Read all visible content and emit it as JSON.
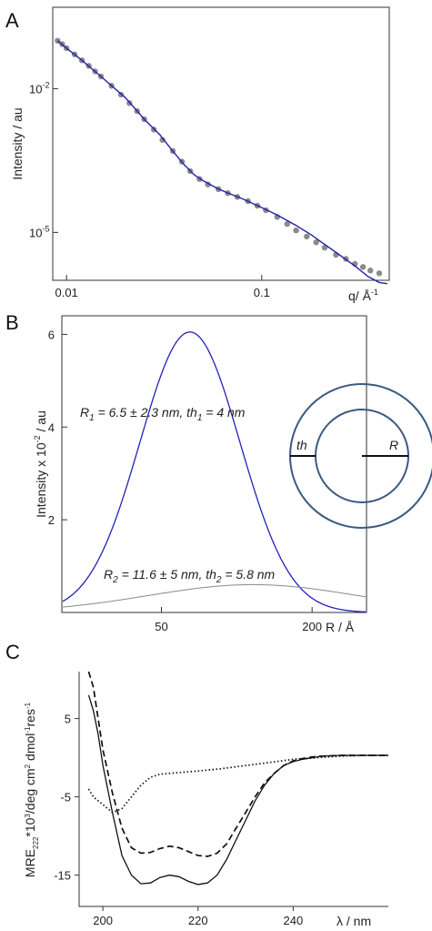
{
  "chart_data": [
    {
      "panel": "A",
      "type": "scatter",
      "xscale": "log",
      "yscale": "log",
      "xlim": [
        0.0085,
        0.45
      ],
      "ylim": [
        1e-06,
        0.5
      ],
      "xlabel": "q/ Å",
      "xlabel_sup": "-1",
      "ylabel": "Intensity / au",
      "x_ticks": [
        {
          "value": 0.01,
          "label": "0.01"
        },
        {
          "value": 0.1,
          "label": "0.1"
        }
      ],
      "y_ticks": [
        {
          "value": 0.01,
          "base": "10",
          "exp": "-2"
        },
        {
          "value": 1e-05,
          "base": "10",
          "exp": "-5"
        }
      ],
      "series": [
        {
          "role": "data",
          "color": "#8a8a8a",
          "x": [
            0.009,
            0.0095,
            0.01,
            0.011,
            0.012,
            0.013,
            0.014,
            0.015,
            0.017,
            0.019,
            0.021,
            0.023,
            0.025,
            0.028,
            0.031,
            0.035,
            0.039,
            0.043,
            0.048,
            0.053,
            0.06,
            0.067,
            0.075,
            0.085,
            0.095,
            0.105,
            0.12,
            0.135,
            0.15,
            0.17,
            0.19,
            0.21,
            0.24,
            0.27,
            0.3,
            0.33,
            0.36,
            0.4
          ],
          "y": [
            0.1,
            0.085,
            0.07,
            0.052,
            0.039,
            0.03,
            0.023,
            0.018,
            0.0115,
            0.0075,
            0.005,
            0.0034,
            0.0023,
            0.0014,
            0.00085,
            0.0005,
            0.0003,
            0.00019,
            0.00013,
            0.0001,
            8e-05,
            6.6e-05,
            5.5e-05,
            4.5e-05,
            3.6e-05,
            2.9e-05,
            2.1e-05,
            1.5e-05,
            1.1e-05,
            8.2e-06,
            6.2e-06,
            4.8e-06,
            3.4e-06,
            2.8e-06,
            2.2e-06,
            1.9e-06,
            1.6e-06,
            1.4e-06
          ]
        },
        {
          "role": "fit",
          "color": "#2222aa",
          "x": [
            0.009,
            0.01,
            0.012,
            0.015,
            0.02,
            0.025,
            0.03,
            0.035,
            0.04,
            0.045,
            0.05,
            0.06,
            0.07,
            0.08,
            0.1,
            0.12,
            0.15,
            0.18,
            0.21,
            0.25,
            0.3,
            0.35,
            0.4,
            0.44
          ],
          "y": [
            0.1,
            0.07,
            0.039,
            0.018,
            0.0065,
            0.0023,
            0.0011,
            0.0005,
            0.00026,
            0.00016,
            0.00012,
            8e-05,
            6.2e-05,
            5e-05,
            3.3e-05,
            2.3e-05,
            1.4e-05,
            8.8e-06,
            5.6e-06,
            3.4e-06,
            2e-06,
            1.2e-06,
            9e-07,
            8.5e-07
          ]
        }
      ]
    },
    {
      "panel": "B",
      "type": "line",
      "xscale": "log",
      "xlim": [
        20,
        330
      ],
      "ylim": [
        0,
        6.4
      ],
      "xlabel": "R / Å",
      "ylabel_parts": [
        "Intensity x 10",
        "-2",
        " / au"
      ],
      "x_ticks": [
        {
          "value": 50,
          "label": "50"
        },
        {
          "value": 200,
          "label": "200"
        }
      ],
      "y_ticks": [
        {
          "value": 2,
          "label": "2"
        },
        {
          "value": 4,
          "label": "4"
        },
        {
          "value": 6,
          "label": "6"
        }
      ],
      "series": [
        {
          "color": "#2222bb",
          "center": 65,
          "peak": 6.05,
          "log_sigma": 0.2
        },
        {
          "color": "#888888",
          "center": 116,
          "peak": 0.6,
          "log_sigma": 0.42
        }
      ],
      "annotations": [
        {
          "parts": [
            [
              "R",
              false
            ],
            [
              "1",
              true
            ],
            [
              " = 6.5 ± 2.3 nm, th",
              false
            ],
            [
              "1",
              true
            ],
            [
              " = 4 nm",
              false
            ]
          ]
        },
        {
          "parts": [
            [
              "R",
              false
            ],
            [
              "2",
              true
            ],
            [
              " = 11.6 ± 5 nm, th",
              false
            ],
            [
              "2",
              true
            ],
            [
              " = 5.8 nm",
              false
            ]
          ]
        }
      ],
      "inset": {
        "outer_label": "th",
        "radius_label": "R",
        "color": "#3b5a80"
      }
    },
    {
      "panel": "C",
      "type": "line",
      "xlim": [
        195,
        260
      ],
      "ylim": [
        -19,
        11
      ],
      "xlabel": "λ / nm",
      "ylabel_parts": [
        [
          "MRE",
          "n"
        ],
        [
          "222",
          "sub"
        ],
        [
          "*10",
          "n"
        ],
        [
          "3",
          "sup"
        ],
        [
          "/deg cm",
          "n"
        ],
        [
          "2",
          "sup"
        ],
        [
          " dmol",
          "n"
        ],
        [
          "-1",
          "sup"
        ],
        [
          "res",
          "n"
        ],
        [
          "-1",
          "sup"
        ]
      ],
      "x_ticks": [
        {
          "value": 200,
          "label": "200"
        },
        {
          "value": 220,
          "label": "220"
        },
        {
          "value": 240,
          "label": "240"
        }
      ],
      "y_ticks": [
        {
          "value": 5,
          "label": "5"
        },
        {
          "value": -5,
          "label": "-5"
        },
        {
          "value": -15,
          "label": "-15"
        }
      ],
      "series": [
        {
          "style": "solid",
          "x": [
            197,
            198,
            199,
            200,
            202,
            204,
            206,
            208,
            210,
            212,
            214,
            216,
            218,
            220,
            222,
            224,
            226,
            228,
            230,
            232,
            234,
            236,
            238,
            240,
            242,
            244,
            246,
            250,
            255,
            260
          ],
          "y": [
            8,
            6,
            3,
            -1,
            -7,
            -12.5,
            -15,
            -16.1,
            -16,
            -15.3,
            -15,
            -15.2,
            -15.8,
            -16.2,
            -16,
            -15,
            -13,
            -10.5,
            -8,
            -5.5,
            -3.5,
            -2,
            -1,
            -0.5,
            -0.2,
            0,
            0.2,
            0.3,
            0.3,
            0.3
          ]
        },
        {
          "style": "dashed",
          "x": [
            197,
            198,
            199,
            200,
            202,
            204,
            206,
            208,
            210,
            212,
            214,
            216,
            218,
            220,
            222,
            224,
            226,
            228,
            230,
            232,
            234,
            236,
            238,
            240,
            242,
            244,
            246,
            250,
            255,
            260
          ],
          "y": [
            11,
            9,
            5,
            1,
            -4.5,
            -9,
            -11.5,
            -12.2,
            -12.1,
            -11.6,
            -11.3,
            -11.5,
            -12,
            -12.5,
            -12.6,
            -12.2,
            -11,
            -9,
            -7,
            -5,
            -3.2,
            -2,
            -1,
            -0.4,
            -0.1,
            0.1,
            0.2,
            0.3,
            0.3,
            0.3
          ]
        },
        {
          "style": "dotted",
          "x": [
            197,
            198,
            200,
            202,
            204,
            206,
            208,
            210,
            212,
            214,
            216,
            220,
            225,
            230,
            235,
            240,
            245,
            250,
            255,
            260
          ],
          "y": [
            -4,
            -5,
            -6,
            -7,
            -6.5,
            -5,
            -3.5,
            -2.5,
            -2.1,
            -2,
            -1.9,
            -1.7,
            -1.4,
            -1,
            -0.6,
            -0.2,
            0,
            0.2,
            0.3,
            0.3
          ]
        }
      ]
    }
  ]
}
